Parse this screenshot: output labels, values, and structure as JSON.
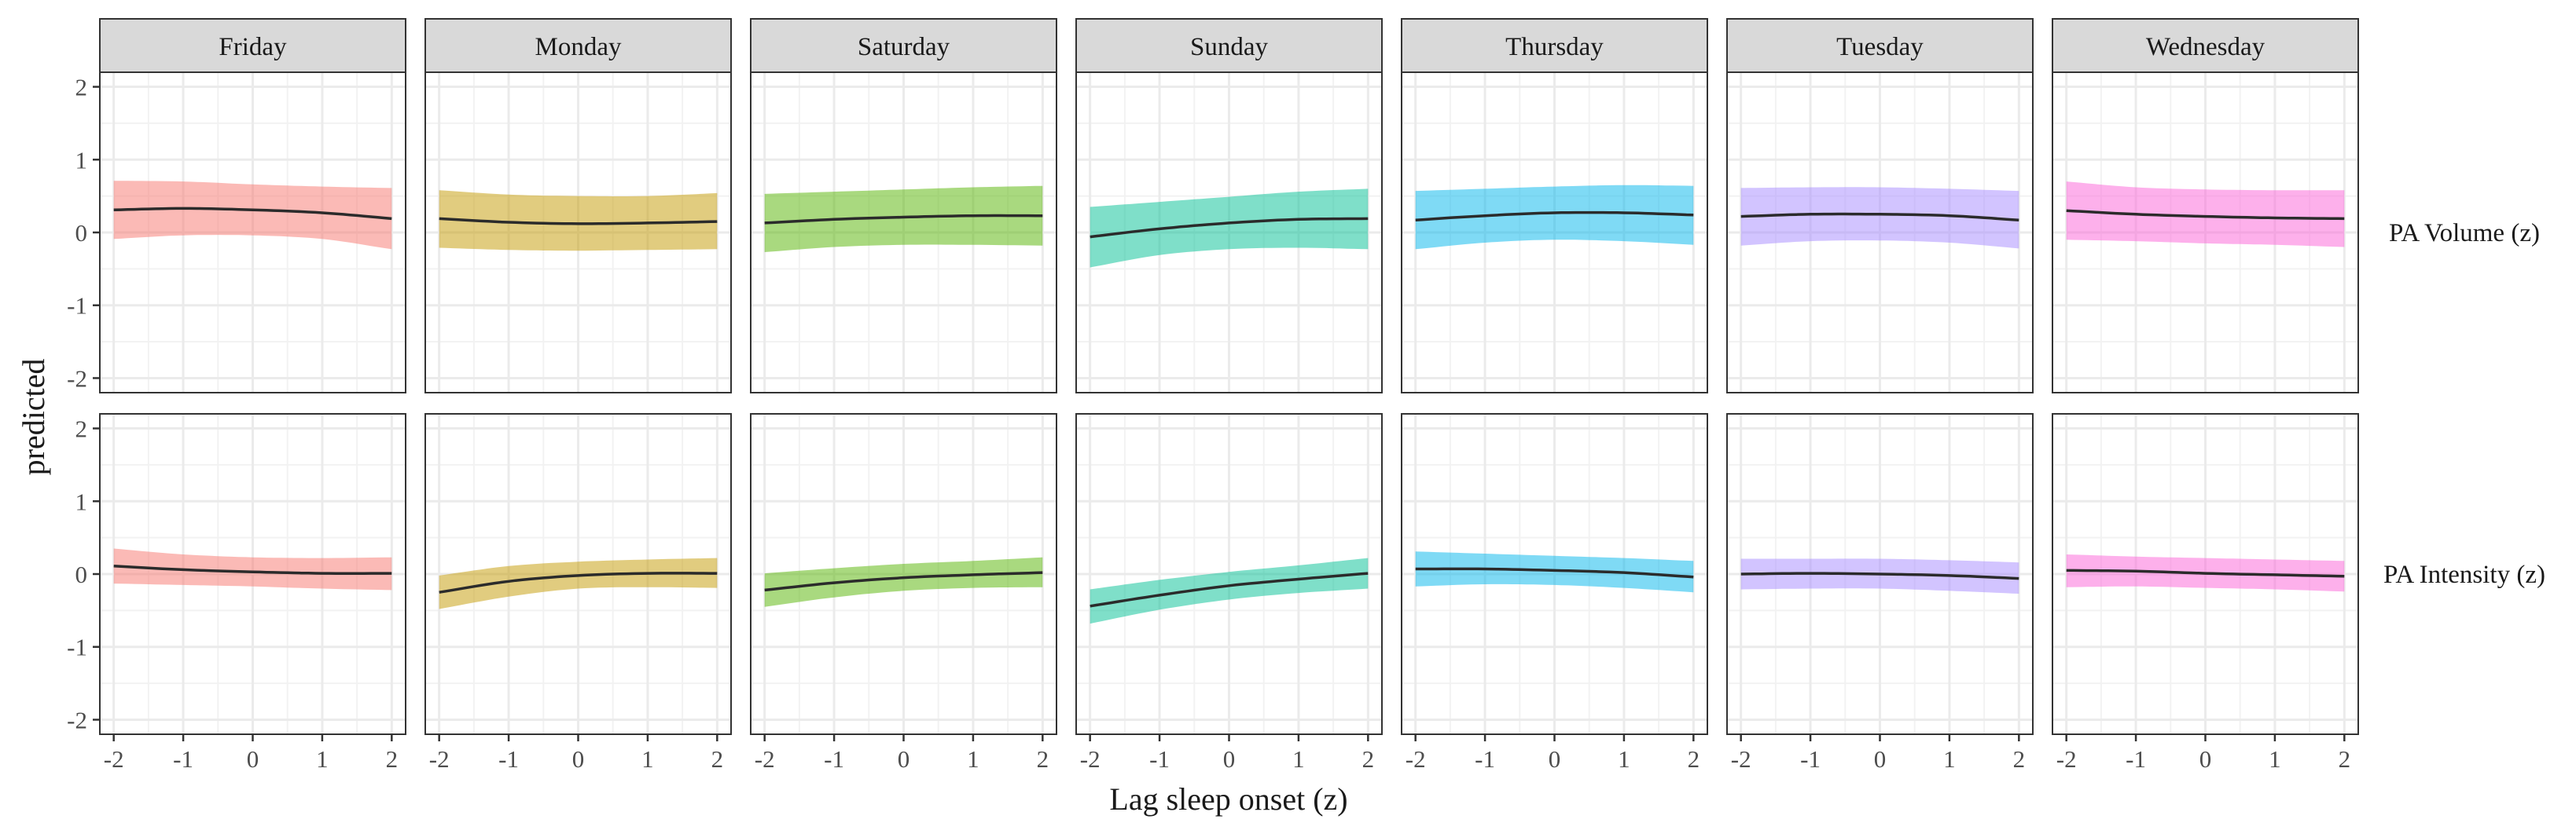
{
  "chart_data": {
    "type": "line",
    "xlabel": "Lag sleep onset (z)",
    "ylabel": "predicted",
    "xlim": [
      -2.2,
      2.2
    ],
    "ylim": [
      -2.2,
      2.2
    ],
    "xticks": [
      -2,
      -1,
      0,
      1,
      2
    ],
    "yticks": [
      -2,
      -1,
      0,
      1,
      2
    ],
    "grid": true,
    "legend": "none",
    "x": [
      -2,
      -1,
      0,
      1,
      2
    ],
    "facet_columns": [
      {
        "label": "Friday",
        "color": "#F8766D"
      },
      {
        "label": "Monday",
        "color": "#C49A00"
      },
      {
        "label": "Saturday",
        "color": "#53B400"
      },
      {
        "label": "Sunday",
        "color": "#00C094"
      },
      {
        "label": "Thursday",
        "color": "#00B6EB"
      },
      {
        "label": "Tuesday",
        "color": "#A58AFF"
      },
      {
        "label": "Wednesday",
        "color": "#FB61D7"
      }
    ],
    "facet_rows": [
      {
        "label": "PA Volume (z)",
        "panels": [
          {
            "fit": [
              0.31,
              0.33,
              0.31,
              0.27,
              0.19
            ],
            "lower": [
              -0.09,
              -0.04,
              -0.04,
              -0.09,
              -0.23
            ],
            "upper": [
              0.71,
              0.7,
              0.66,
              0.63,
              0.61
            ]
          },
          {
            "fit": [
              0.19,
              0.14,
              0.12,
              0.13,
              0.15
            ],
            "lower": [
              -0.21,
              -0.24,
              -0.25,
              -0.24,
              -0.23
            ],
            "upper": [
              0.58,
              0.52,
              0.5,
              0.5,
              0.54
            ]
          },
          {
            "fit": [
              0.13,
              0.18,
              0.21,
              0.23,
              0.23
            ],
            "lower": [
              -0.27,
              -0.2,
              -0.17,
              -0.17,
              -0.18
            ],
            "upper": [
              0.53,
              0.56,
              0.59,
              0.62,
              0.64
            ]
          },
          {
            "fit": [
              -0.06,
              0.05,
              0.13,
              0.18,
              0.19
            ],
            "lower": [
              -0.48,
              -0.31,
              -0.23,
              -0.21,
              -0.23
            ],
            "upper": [
              0.35,
              0.42,
              0.49,
              0.56,
              0.6
            ]
          },
          {
            "fit": [
              0.17,
              0.23,
              0.27,
              0.27,
              0.24
            ],
            "lower": [
              -0.23,
              -0.14,
              -0.1,
              -0.12,
              -0.17
            ],
            "upper": [
              0.57,
              0.6,
              0.63,
              0.65,
              0.64
            ]
          },
          {
            "fit": [
              0.22,
              0.25,
              0.25,
              0.23,
              0.17
            ],
            "lower": [
              -0.18,
              -0.12,
              -0.11,
              -0.14,
              -0.22
            ],
            "upper": [
              0.61,
              0.62,
              0.62,
              0.6,
              0.57
            ]
          },
          {
            "fit": [
              0.3,
              0.25,
              0.22,
              0.2,
              0.19
            ],
            "lower": [
              -0.1,
              -0.12,
              -0.15,
              -0.17,
              -0.2
            ],
            "upper": [
              0.7,
              0.62,
              0.59,
              0.58,
              0.58
            ]
          }
        ]
      },
      {
        "label": "PA Intensity (z)",
        "panels": [
          {
            "fit": [
              0.11,
              0.06,
              0.03,
              0.01,
              0.01
            ],
            "lower": [
              -0.13,
              -0.15,
              -0.17,
              -0.2,
              -0.22
            ],
            "upper": [
              0.35,
              0.27,
              0.23,
              0.22,
              0.23
            ]
          },
          {
            "fit": [
              -0.25,
              -0.1,
              -0.02,
              0.01,
              0.01
            ],
            "lower": [
              -0.48,
              -0.31,
              -0.2,
              -0.18,
              -0.19
            ],
            "upper": [
              -0.02,
              0.11,
              0.17,
              0.2,
              0.22
            ]
          },
          {
            "fit": [
              -0.22,
              -0.12,
              -0.05,
              -0.01,
              0.02
            ],
            "lower": [
              -0.45,
              -0.32,
              -0.23,
              -0.19,
              -0.18
            ],
            "upper": [
              0.01,
              0.08,
              0.14,
              0.18,
              0.23
            ]
          },
          {
            "fit": [
              -0.44,
              -0.29,
              -0.16,
              -0.07,
              0.01
            ],
            "lower": [
              -0.68,
              -0.49,
              -0.35,
              -0.26,
              -0.2
            ],
            "upper": [
              -0.21,
              -0.08,
              0.03,
              0.12,
              0.22
            ]
          },
          {
            "fit": [
              0.07,
              0.07,
              0.05,
              0.02,
              -0.04
            ],
            "lower": [
              -0.17,
              -0.14,
              -0.15,
              -0.19,
              -0.25
            ],
            "upper": [
              0.31,
              0.28,
              0.25,
              0.22,
              0.18
            ]
          },
          {
            "fit": [
              0.0,
              0.01,
              0.0,
              -0.02,
              -0.06
            ],
            "lower": [
              -0.21,
              -0.2,
              -0.2,
              -0.23,
              -0.27
            ],
            "upper": [
              0.21,
              0.21,
              0.21,
              0.19,
              0.16
            ]
          },
          {
            "fit": [
              0.05,
              0.04,
              0.01,
              -0.01,
              -0.03
            ],
            "lower": [
              -0.18,
              -0.17,
              -0.19,
              -0.21,
              -0.24
            ],
            "upper": [
              0.27,
              0.24,
              0.22,
              0.2,
              0.18
            ]
          }
        ]
      }
    ]
  }
}
